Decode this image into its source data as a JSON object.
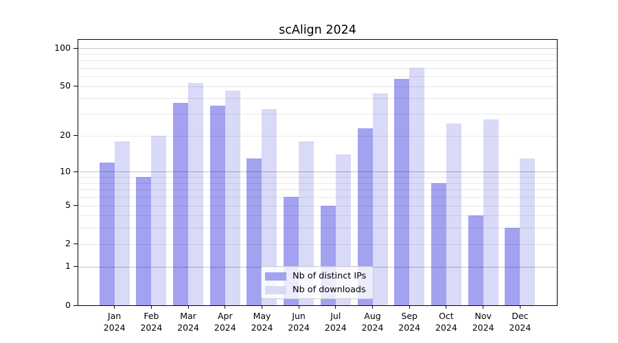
{
  "chart_data": {
    "type": "bar",
    "title": "scAlign 2024",
    "categories": [
      "Jan",
      "Feb",
      "Mar",
      "Apr",
      "May",
      "Jun",
      "Jul",
      "Aug",
      "Sep",
      "Oct",
      "Nov",
      "Dec"
    ],
    "year": "2024",
    "series": [
      {
        "name": "Nb of distinct IPs",
        "color": "#a2a2f0",
        "values": [
          12,
          9,
          37,
          35,
          13,
          6,
          5,
          23,
          57,
          8,
          4,
          3
        ]
      },
      {
        "name": "Nb of downloads",
        "color": "#d9d9f8",
        "values": [
          18,
          20,
          53,
          46,
          33,
          18,
          14,
          44,
          70,
          25,
          27,
          13
        ]
      }
    ],
    "xlabel": "",
    "ylabel": "",
    "y_scale": "log10(1+x)",
    "ylim": [
      0,
      117
    ],
    "y_ticks": [
      100,
      50,
      20,
      10,
      5,
      2,
      1,
      0
    ],
    "y_grid_major": [
      1,
      10,
      100
    ],
    "y_grid_minor": [
      2,
      3,
      4,
      5,
      6,
      7,
      8,
      9,
      20,
      30,
      40,
      50,
      60,
      70,
      80,
      90
    ],
    "grid": "on, drawn above bars",
    "legend_position": "lower center",
    "colors": {
      "grid_major": "rgba(0,0,0,0.24)",
      "grid_minor": "rgba(0,0,0,0.09)",
      "spine": "#000000",
      "legend_border": "#cccccc",
      "legend_bg": "rgba(255,255,255,0.8)",
      "background": "#ffffff"
    }
  }
}
